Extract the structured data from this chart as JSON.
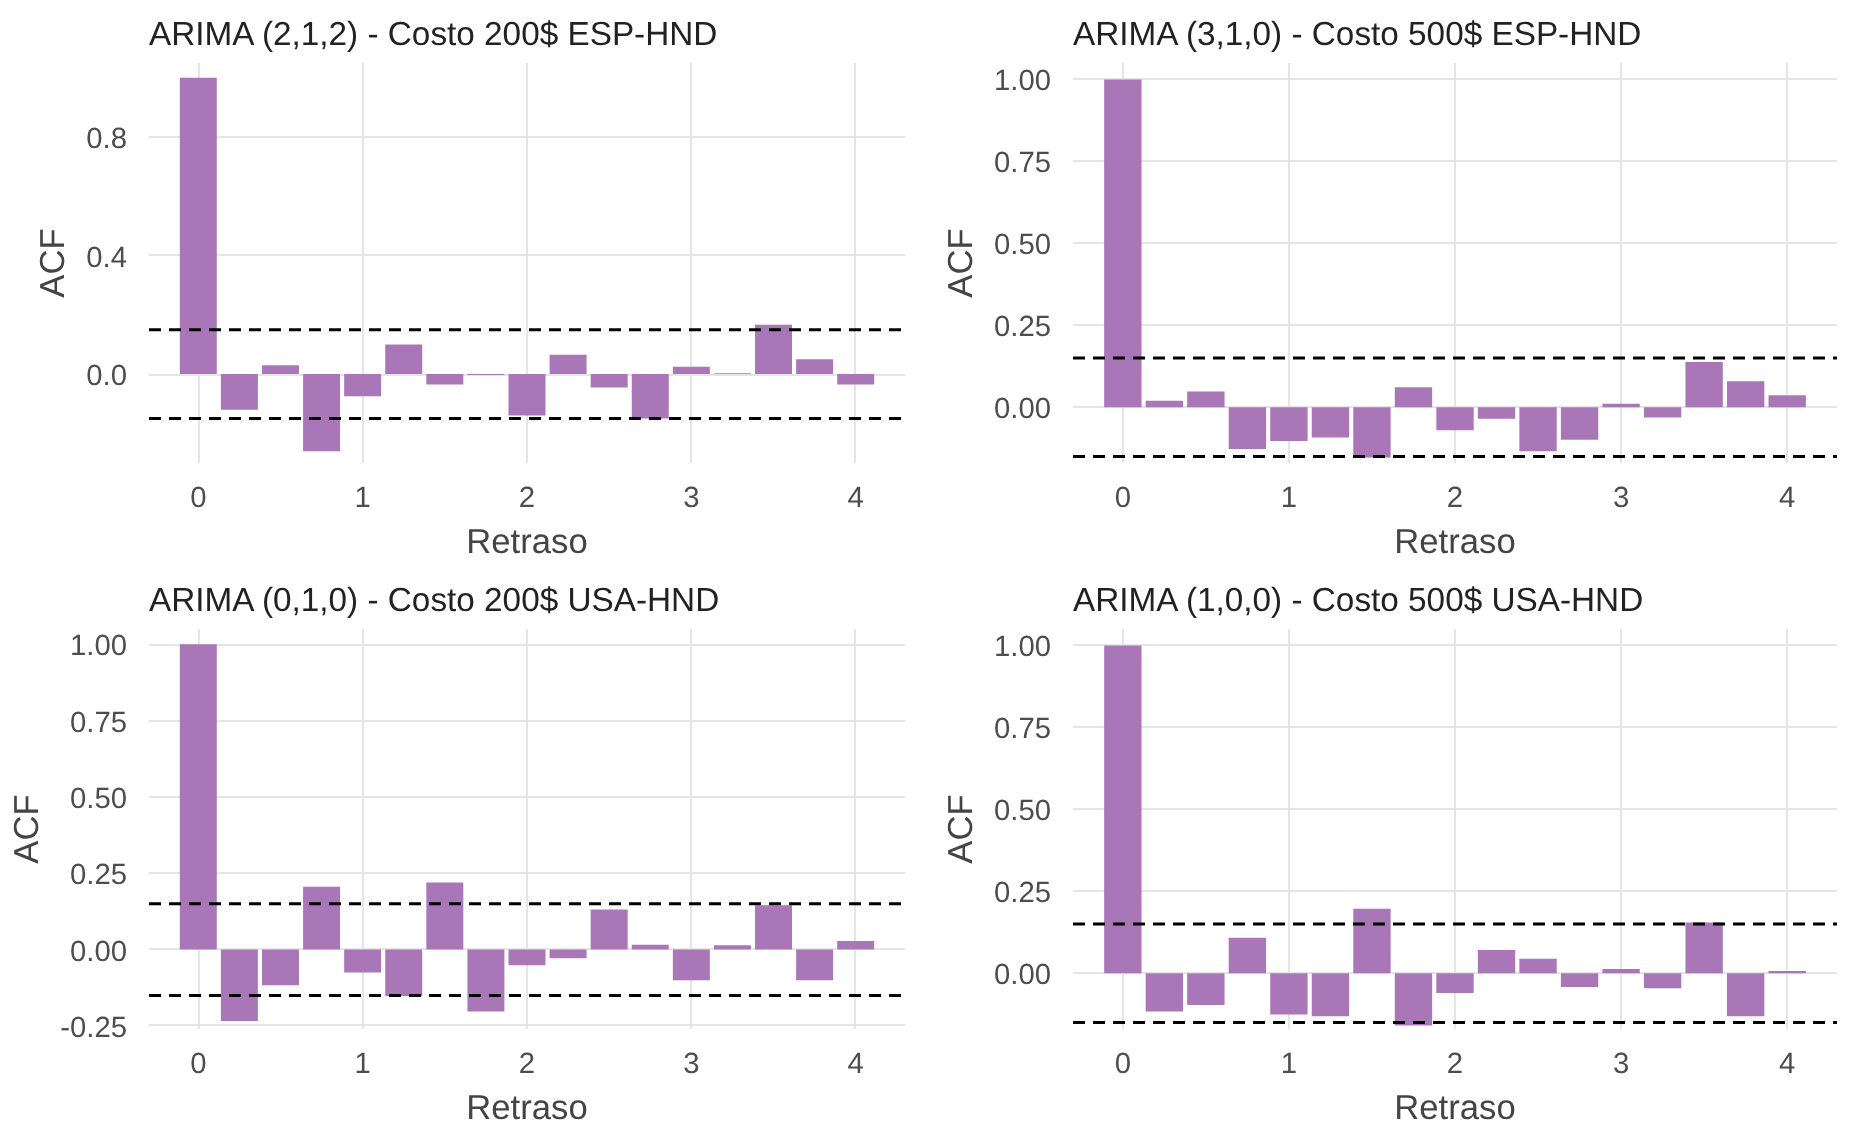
{
  "chart_data": [
    {
      "type": "bar",
      "title": "ARIMA (2,1,2) - Costo 200$ ESP-HND",
      "xlabel": "Retraso",
      "ylabel": "ACF",
      "color": "#a977b8",
      "grid": true,
      "xlim": [
        -0.3,
        4.3
      ],
      "ylim": [
        -0.3,
        1.05
      ],
      "xticks": [
        0,
        1,
        2,
        3,
        4
      ],
      "yticks": [
        {
          "value": 0,
          "label": "0.0"
        },
        0.4,
        0.8
      ],
      "x": [
        0,
        0.25,
        0.5,
        0.75,
        1,
        1.25,
        1.5,
        1.75,
        2,
        2.25,
        2.5,
        2.75,
        3,
        3.25,
        3.5,
        3.75,
        4
      ],
      "values": [
        1.0,
        -0.12,
        0.03,
        -0.26,
        -0.075,
        0.1,
        -0.035,
        -0.003,
        -0.14,
        0.065,
        -0.045,
        -0.15,
        0.025,
        0.003,
        0.167,
        0.05,
        -0.035
      ],
      "ref_lines": [
        {
          "axis": "y",
          "value": 0.15,
          "color": "#000000",
          "line_style": "dashed"
        },
        {
          "axis": "y",
          "value": -0.15,
          "color": "#000000",
          "line_style": "dashed"
        }
      ]
    },
    {
      "type": "bar",
      "title": "ARIMA (3,1,0) - Costo 500$ ESP-HND",
      "xlabel": "Retraso",
      "ylabel": "ACF",
      "color": "#a977b8",
      "grid": true,
      "xlim": [
        -0.3,
        4.3
      ],
      "ylim": [
        -0.17,
        1.05
      ],
      "xticks": [
        0,
        1,
        2,
        3,
        4
      ],
      "yticks": [
        {
          "value": 0,
          "label": "0.00"
        },
        0.25,
        {
          "value": 0.5,
          "label": "0.50"
        },
        0.75,
        {
          "value": 1,
          "label": "1.00"
        }
      ],
      "x": [
        0,
        0.25,
        0.5,
        0.75,
        1,
        1.25,
        1.5,
        1.75,
        2,
        2.25,
        2.5,
        2.75,
        3,
        3.25,
        3.5,
        3.75,
        4
      ],
      "values": [
        1.0,
        0.02,
        0.048,
        -0.127,
        -0.103,
        -0.092,
        -0.153,
        0.061,
        -0.07,
        -0.035,
        -0.134,
        -0.099,
        0.011,
        -0.031,
        0.138,
        0.079,
        0.037
      ],
      "ref_lines": [
        {
          "axis": "y",
          "value": 0.15,
          "color": "#000000",
          "line_style": "dashed"
        },
        {
          "axis": "y",
          "value": -0.15,
          "color": "#000000",
          "line_style": "dashed"
        }
      ]
    },
    {
      "type": "bar",
      "title": "ARIMA (0,1,0) - Costo 200$ USA-HND",
      "xlabel": "Retraso",
      "ylabel": "ACF",
      "color": "#a977b8",
      "grid": true,
      "xlim": [
        -0.3,
        4.3
      ],
      "ylim": [
        -0.26,
        1.05
      ],
      "xticks": [
        0,
        1,
        2,
        3,
        4
      ],
      "yticks": [
        -0.25,
        {
          "value": 0,
          "label": "0.00"
        },
        0.25,
        {
          "value": 0.5,
          "label": "0.50"
        },
        0.75,
        {
          "value": 1,
          "label": "1.00"
        }
      ],
      "x": [
        0,
        0.25,
        0.5,
        0.75,
        1,
        1.25,
        1.5,
        1.75,
        2,
        2.25,
        2.5,
        2.75,
        3,
        3.25,
        3.5,
        3.75,
        4
      ],
      "values": [
        1.0,
        -0.234,
        -0.117,
        0.206,
        -0.075,
        -0.152,
        0.22,
        -0.203,
        -0.051,
        -0.028,
        0.131,
        0.016,
        -0.1,
        0.014,
        0.145,
        -0.1,
        0.028
      ],
      "ref_lines": [
        {
          "axis": "y",
          "value": 0.15,
          "color": "#000000",
          "line_style": "dashed"
        },
        {
          "axis": "y",
          "value": -0.15,
          "color": "#000000",
          "line_style": "dashed"
        }
      ]
    },
    {
      "type": "bar",
      "title": "ARIMA (1,0,0) - Costo 500$ USA-HND",
      "xlabel": "Retraso",
      "ylabel": "ACF",
      "color": "#a977b8",
      "grid": true,
      "xlim": [
        -0.3,
        4.3
      ],
      "ylim": [
        -0.17,
        1.05
      ],
      "xticks": [
        0,
        1,
        2,
        3,
        4
      ],
      "yticks": [
        {
          "value": 0,
          "label": "0.00"
        },
        0.25,
        {
          "value": 0.5,
          "label": "0.50"
        },
        0.75,
        {
          "value": 1,
          "label": "1.00"
        }
      ],
      "x": [
        0,
        0.25,
        0.5,
        0.75,
        1,
        1.25,
        1.5,
        1.75,
        2,
        2.25,
        2.5,
        2.75,
        3,
        3.25,
        3.5,
        3.75,
        4
      ],
      "values": [
        1.0,
        -0.117,
        -0.097,
        0.108,
        -0.126,
        -0.131,
        0.197,
        -0.159,
        -0.06,
        0.071,
        0.044,
        -0.042,
        0.013,
        -0.046,
        0.155,
        -0.131,
        0.007
      ],
      "ref_lines": [
        {
          "axis": "y",
          "value": 0.15,
          "color": "#000000",
          "line_style": "dashed"
        },
        {
          "axis": "y",
          "value": -0.15,
          "color": "#000000",
          "line_style": "dashed"
        }
      ]
    }
  ]
}
